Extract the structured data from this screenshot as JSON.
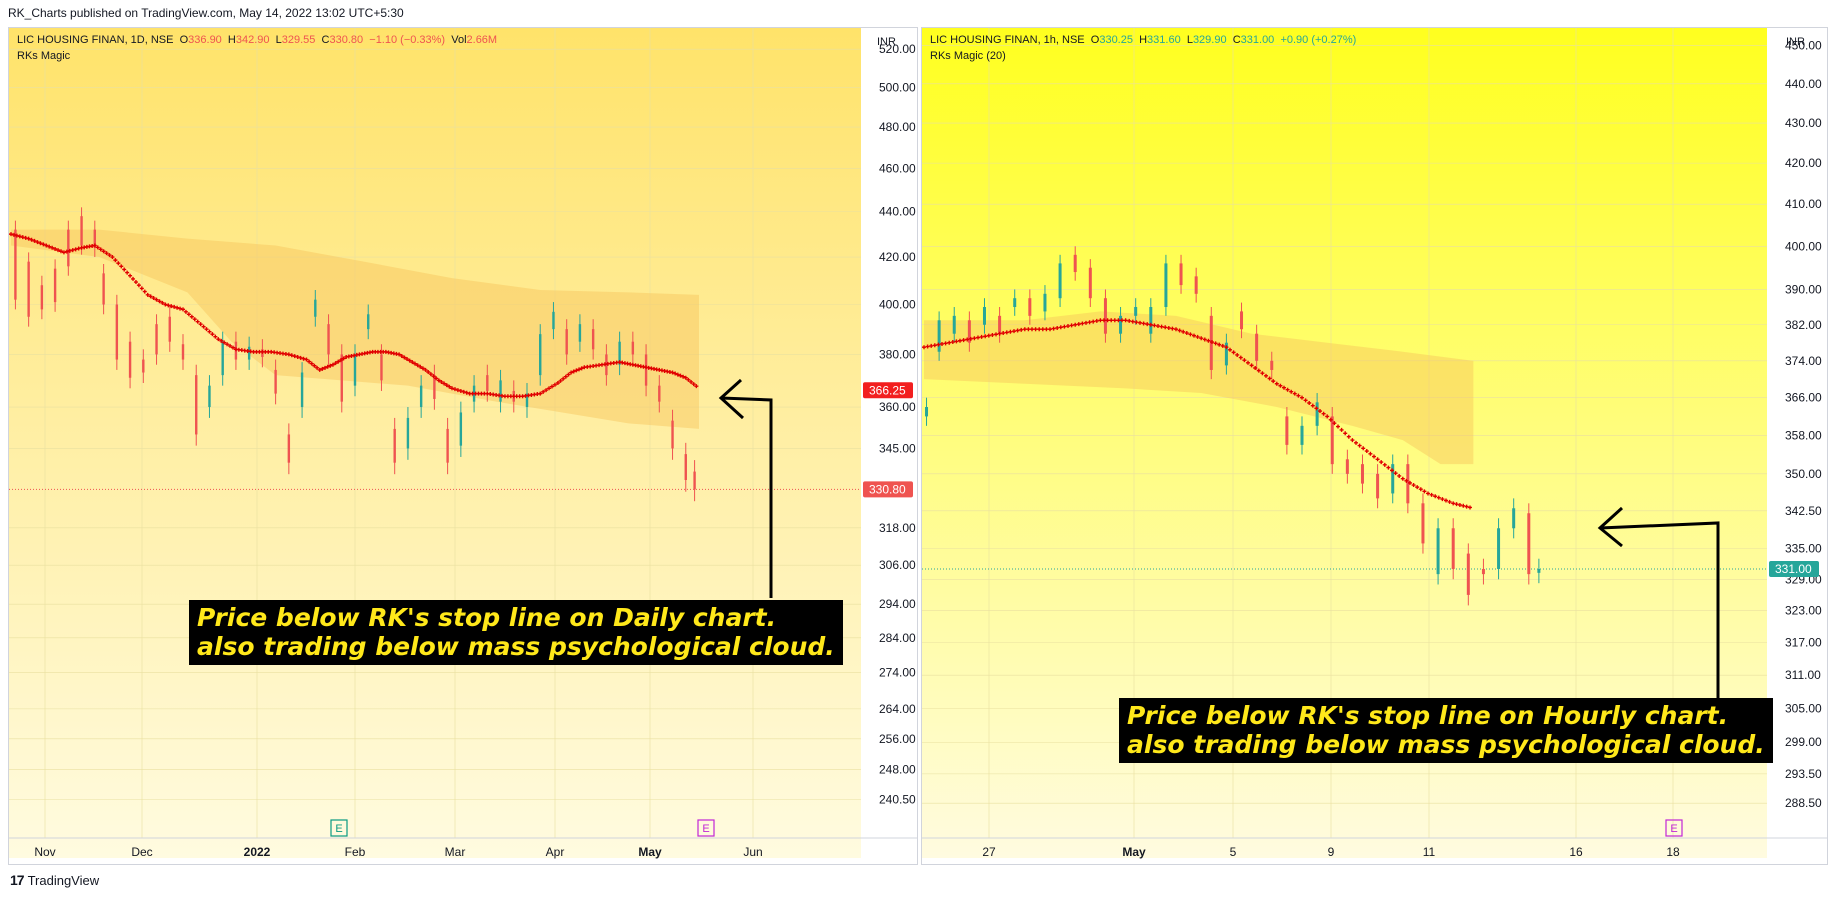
{
  "header": {
    "published_text": "RK_Charts published on TradingView.com, May 14, 2022 13:02 UTC+5:30"
  },
  "footer": {
    "brand": "TradingView",
    "logo": "tv-logo-icon"
  },
  "chart_data": [
    {
      "type": "candlestick",
      "symbol": "LIC HOUSING FINAN, 1D, NSE",
      "ohlc": {
        "O": "336.90",
        "H": "342.90",
        "L": "329.55",
        "C": "330.80",
        "chg": "−1.10 (−0.33%)",
        "vol": "2.66M"
      },
      "indicator": "RKs Magic",
      "currency": "INR",
      "direction": "down",
      "y_ticks": [
        "520.00",
        "500.00",
        "480.00",
        "460.00",
        "440.00",
        "420.00",
        "400.00",
        "380.00",
        "360.00",
        "345.00",
        "318.00",
        "306.00",
        "294.00",
        "284.00",
        "274.00",
        "264.00",
        "256.00",
        "248.00",
        "240.50"
      ],
      "x_ticks": [
        "Nov",
        "Dec",
        "2022",
        "Feb",
        "Mar",
        "Apr",
        "May",
        "Jun"
      ],
      "ylim": [
        236,
        526
      ],
      "price_badges": [
        {
          "value": "366.25",
          "color": "#f21f1f"
        },
        {
          "value": "330.80",
          "color": "#ef5350"
        }
      ],
      "last_close": 330.8,
      "stop_line": [
        [
          0,
          430
        ],
        [
          4,
          428
        ],
        [
          8,
          425
        ],
        [
          12,
          422
        ],
        [
          16,
          424
        ],
        [
          19,
          425
        ],
        [
          23,
          420
        ],
        [
          27,
          412
        ],
        [
          31,
          404
        ],
        [
          35,
          400
        ],
        [
          39,
          398
        ],
        [
          43,
          392
        ],
        [
          47,
          386
        ],
        [
          51,
          382
        ],
        [
          55,
          381
        ],
        [
          59,
          381
        ],
        [
          63,
          380
        ],
        [
          67,
          378
        ],
        [
          70,
          374
        ],
        [
          73,
          376
        ],
        [
          76,
          379
        ],
        [
          79,
          380
        ],
        [
          82,
          381
        ],
        [
          85,
          381
        ],
        [
          88,
          380
        ],
        [
          91,
          377
        ],
        [
          94,
          374
        ],
        [
          97,
          370
        ],
        [
          100,
          367
        ],
        [
          104,
          365
        ],
        [
          108,
          365
        ],
        [
          112,
          364
        ],
        [
          116,
          364
        ],
        [
          120,
          365
        ],
        [
          124,
          369
        ],
        [
          127,
          373
        ],
        [
          130,
          375
        ],
        [
          134,
          376
        ],
        [
          138,
          377
        ],
        [
          141,
          376
        ],
        [
          144,
          375
        ],
        [
          147,
          374
        ],
        [
          150,
          373
        ],
        [
          153,
          371
        ],
        [
          156,
          367
        ]
      ],
      "cloud_top": [
        [
          0,
          432
        ],
        [
          20,
          432
        ],
        [
          40,
          428
        ],
        [
          60,
          425
        ],
        [
          80,
          418
        ],
        [
          100,
          411
        ],
        [
          120,
          406
        ],
        [
          140,
          405
        ],
        [
          156,
          404
        ]
      ],
      "cloud_bottom": [
        [
          0,
          425
        ],
        [
          20,
          420
        ],
        [
          40,
          405
        ],
        [
          50,
          385
        ],
        [
          60,
          372
        ],
        [
          75,
          370
        ],
        [
          90,
          368
        ],
        [
          110,
          362
        ],
        [
          125,
          358
        ],
        [
          140,
          354
        ],
        [
          156,
          352
        ]
      ],
      "candles": [
        [
          1,
          432,
          402
        ],
        [
          4,
          418,
          395
        ],
        [
          7,
          408,
          398
        ],
        [
          10,
          415,
          401
        ],
        [
          13,
          432,
          416
        ],
        [
          16,
          438,
          425
        ],
        [
          19,
          432,
          424
        ],
        [
          21,
          413,
          400
        ],
        [
          24,
          400,
          378
        ],
        [
          27,
          385,
          371
        ],
        [
          30,
          378,
          373
        ],
        [
          33,
          392,
          380
        ],
        [
          36,
          395,
          385
        ],
        [
          39,
          384,
          378
        ],
        [
          42,
          372,
          350
        ],
        [
          45,
          360,
          368
        ],
        [
          48,
          372,
          385
        ],
        [
          51,
          385,
          378
        ],
        [
          54,
          378,
          383
        ],
        [
          57,
          382,
          379
        ],
        [
          60,
          374,
          365
        ],
        [
          63,
          350,
          340
        ],
        [
          66,
          360,
          373
        ],
        [
          69,
          395,
          402
        ],
        [
          72,
          392,
          380
        ],
        [
          75,
          380,
          362
        ],
        [
          78,
          368,
          380
        ],
        [
          81,
          390,
          396
        ],
        [
          84,
          380,
          370
        ],
        [
          87,
          352,
          340
        ],
        [
          90,
          345,
          356
        ],
        [
          93,
          360,
          368
        ],
        [
          96,
          372,
          363
        ],
        [
          99,
          352,
          340
        ],
        [
          102,
          346,
          358
        ],
        [
          105,
          362,
          368
        ],
        [
          108,
          372,
          366
        ],
        [
          111,
          362,
          370
        ],
        [
          114,
          366,
          362
        ],
        [
          117,
          360,
          365
        ],
        [
          120,
          372,
          388
        ],
        [
          123,
          390,
          397
        ],
        [
          126,
          390,
          380
        ],
        [
          129,
          385,
          392
        ],
        [
          132,
          390,
          382
        ],
        [
          135,
          380,
          372
        ],
        [
          138,
          376,
          385
        ],
        [
          141,
          385,
          380
        ],
        [
          144,
          380,
          368
        ],
        [
          147,
          368,
          362
        ],
        [
          150,
          355,
          345
        ],
        [
          153,
          343,
          334
        ],
        [
          155,
          336.9,
          330.8
        ]
      ],
      "note": [
        "Price below RK's stop line on Daily chart.",
        "also trading below mass psychological cloud."
      ]
    },
    {
      "type": "candlestick",
      "symbol": "LIC HOUSING FINAN, 1h, NSE",
      "ohlc": {
        "O": "330.25",
        "H": "331.60",
        "L": "329.90",
        "C": "331.00",
        "chg": "+0.90 (+0.27%)"
      },
      "indicator": "RKs Magic (20)",
      "currency": "INR",
      "direction": "up",
      "y_ticks": [
        "450.00",
        "440.00",
        "430.00",
        "420.00",
        "410.00",
        "400.00",
        "390.00",
        "382.00",
        "374.00",
        "366.00",
        "358.00",
        "350.00",
        "342.50",
        "335.00",
        "329.00",
        "323.00",
        "317.00",
        "311.00",
        "305.00",
        "299.00",
        "293.50",
        "288.50"
      ],
      "x_ticks": [
        "27",
        "May",
        "5",
        "9",
        "11",
        "16",
        "18"
      ],
      "ylim": [
        286,
        452
      ],
      "price_badges": [
        {
          "value": "331.00",
          "color": "#26a69a"
        }
      ],
      "last_close": 331.0,
      "stop_line": [
        [
          0,
          377
        ],
        [
          10,
          378
        ],
        [
          20,
          379
        ],
        [
          30,
          380
        ],
        [
          40,
          381
        ],
        [
          50,
          381
        ],
        [
          60,
          382
        ],
        [
          70,
          383
        ],
        [
          80,
          383
        ],
        [
          90,
          382
        ],
        [
          100,
          381
        ],
        [
          110,
          379
        ],
        [
          120,
          377
        ],
        [
          130,
          373
        ],
        [
          140,
          369
        ],
        [
          150,
          366
        ],
        [
          160,
          362
        ],
        [
          170,
          357
        ],
        [
          180,
          353
        ],
        [
          190,
          349
        ],
        [
          200,
          346
        ],
        [
          210,
          344
        ],
        [
          218,
          343
        ]
      ],
      "cloud_top": [
        [
          0,
          383
        ],
        [
          40,
          383
        ],
        [
          70,
          385
        ],
        [
          100,
          384
        ],
        [
          130,
          380
        ],
        [
          160,
          378
        ],
        [
          190,
          376
        ],
        [
          218,
          374
        ]
      ],
      "cloud_bottom": [
        [
          0,
          370
        ],
        [
          40,
          369
        ],
        [
          80,
          368
        ],
        [
          110,
          367
        ],
        [
          140,
          364
        ],
        [
          170,
          360
        ],
        [
          190,
          357
        ],
        [
          205,
          352
        ],
        [
          218,
          352
        ]
      ],
      "candles": [
        [
          1,
          362,
          364
        ],
        [
          6,
          376,
          383
        ],
        [
          12,
          380,
          384
        ],
        [
          18,
          383,
          378
        ],
        [
          24,
          382,
          386
        ],
        [
          30,
          384,
          380
        ],
        [
          36,
          386,
          388
        ],
        [
          42,
          388,
          384
        ],
        [
          48,
          385,
          389
        ],
        [
          54,
          388,
          396
        ],
        [
          60,
          398,
          394
        ],
        [
          66,
          395,
          388
        ],
        [
          72,
          388,
          380
        ],
        [
          78,
          380,
          384
        ],
        [
          84,
          384,
          386
        ],
        [
          90,
          380,
          386
        ],
        [
          96,
          386,
          396
        ],
        [
          102,
          396,
          391
        ],
        [
          108,
          393,
          389
        ],
        [
          114,
          384,
          372
        ],
        [
          120,
          373,
          378
        ],
        [
          126,
          385,
          381
        ],
        [
          132,
          380,
          374
        ],
        [
          138,
          374,
          372
        ],
        [
          144,
          362,
          356
        ],
        [
          150,
          356,
          360
        ],
        [
          156,
          360,
          365
        ],
        [
          162,
          362,
          352
        ],
        [
          168,
          353,
          350
        ],
        [
          174,
          352,
          348
        ],
        [
          180,
          350,
          345
        ],
        [
          186,
          346,
          352
        ],
        [
          192,
          352,
          344
        ],
        [
          198,
          344,
          336
        ],
        [
          204,
          330,
          339
        ],
        [
          210,
          339,
          331
        ],
        [
          216,
          334,
          326
        ],
        [
          222,
          331,
          330
        ],
        [
          228,
          331,
          339
        ],
        [
          234,
          339,
          343
        ],
        [
          240,
          342,
          330
        ],
        [
          244,
          330.25,
          331
        ]
      ],
      "note": [
        "Price below RK's stop line on Hourly chart.",
        "also trading below mass psychological cloud."
      ]
    }
  ]
}
